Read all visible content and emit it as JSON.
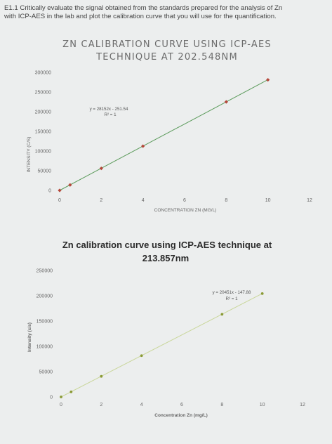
{
  "question": {
    "line1": "E1.1 Critically evaluate the signal obtained from the standards prepared for the analysis of Zn",
    "line2": "with ICP-AES in the lab and plot the calibration curve that you will use for the quantification."
  },
  "chart_data": [
    {
      "type": "scatter",
      "title_line1": "ZN CALIBRATION CURVE USING ICP-AES",
      "title_line2": "TECHNIQUE AT 202.548NM",
      "xlabel": "CONCENTRATION ZN (MG/L)",
      "ylabel": "INTENSITY (C/S)",
      "xlim": [
        0,
        12
      ],
      "ylim": [
        0,
        300000
      ],
      "xticks": [
        "0",
        "2",
        "4",
        "6",
        "8",
        "10",
        "12"
      ],
      "yticks": [
        "0",
        "50000",
        "100000",
        "150000",
        "200000",
        "250000",
        "300000"
      ],
      "series": [
        {
          "x": [
            0,
            0.5,
            2,
            4,
            8,
            10
          ],
          "y": [
            0,
            13800,
            56000,
            112400,
            225000,
            281000
          ]
        }
      ],
      "trendline": {
        "slope": 28152,
        "intercept": -251.54
      },
      "equation": "y = 28152x - 251.54",
      "r2": "R² = 1",
      "marker_color": "#b5473a",
      "line_color": "#5a9a5a",
      "grid": false
    },
    {
      "type": "scatter",
      "title_line1": "Zn calibration curve using ICP-AES technique at",
      "title_line2": "213.857nm",
      "xlabel": "Concentration Zn (mg/L)",
      "ylabel": "Intensity (c/s)",
      "xlim": [
        0,
        12
      ],
      "ylim": [
        0,
        250000
      ],
      "xticks": [
        "0",
        "2",
        "4",
        "6",
        "8",
        "10",
        "12"
      ],
      "yticks": [
        "0",
        "50000",
        "100000",
        "150000",
        "200000",
        "250000"
      ],
      "series": [
        {
          "x": [
            0,
            0.5,
            2,
            4,
            8,
            10
          ],
          "y": [
            0,
            10100,
            40700,
            81600,
            163400,
            204300
          ]
        }
      ],
      "trendline": {
        "slope": 20451,
        "intercept": -147.88
      },
      "equation": "y = 20451x - 147.88",
      "r2": "R² = 1",
      "marker_color": "#8a9a35",
      "line_color": "#c9d69a",
      "grid": false
    }
  ]
}
